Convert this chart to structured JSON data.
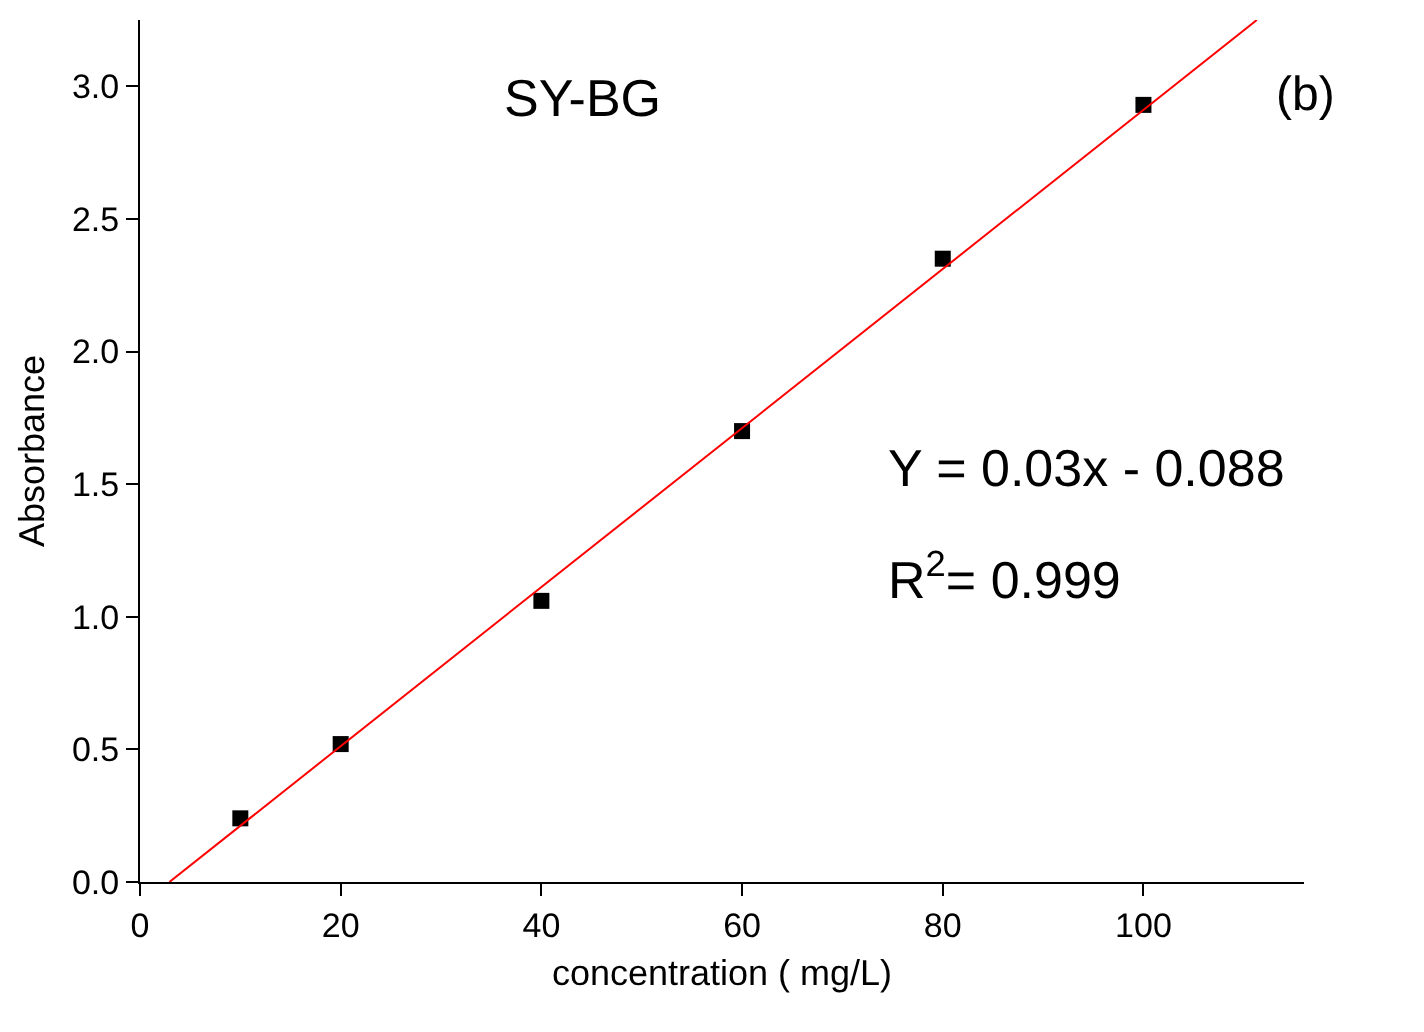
{
  "chart_data": {
    "type": "scatter",
    "xlabel": "concentration ( mg/L)",
    "ylabel": "Absorbance",
    "x": [
      10,
      20,
      40,
      60,
      80,
      100
    ],
    "series": [
      {
        "color": "#000000",
        "marker": "square",
        "values": [
          0.24,
          0.52,
          1.06,
          1.7,
          2.35,
          2.93
        ]
      },
      {
        "type": "line",
        "color": "#ff0000",
        "marker": "none",
        "x": [
          2.93,
          111.3
        ],
        "values": [
          0,
          3.25
        ]
      }
    ],
    "xlim": [
      0,
      116
    ],
    "xticks": [
      0,
      20,
      40,
      60,
      80,
      100
    ],
    "ylim": [
      0,
      3.25
    ],
    "yticks": [
      {
        "value": 0,
        "label": "0.0"
      },
      {
        "value": 0.5,
        "label": "0.5"
      },
      {
        "value": 1,
        "label": "1.0"
      },
      {
        "value": 1.5,
        "label": "1.5"
      },
      {
        "value": 2,
        "label": "2.0"
      },
      {
        "value": 2.5,
        "label": "2.5"
      },
      {
        "value": 3,
        "label": "3.0"
      }
    ],
    "annotations": [
      "SY-BG",
      "(b)",
      "Y = 0.03x - 0.088",
      "R$^{2}$= 0.999"
    ]
  }
}
